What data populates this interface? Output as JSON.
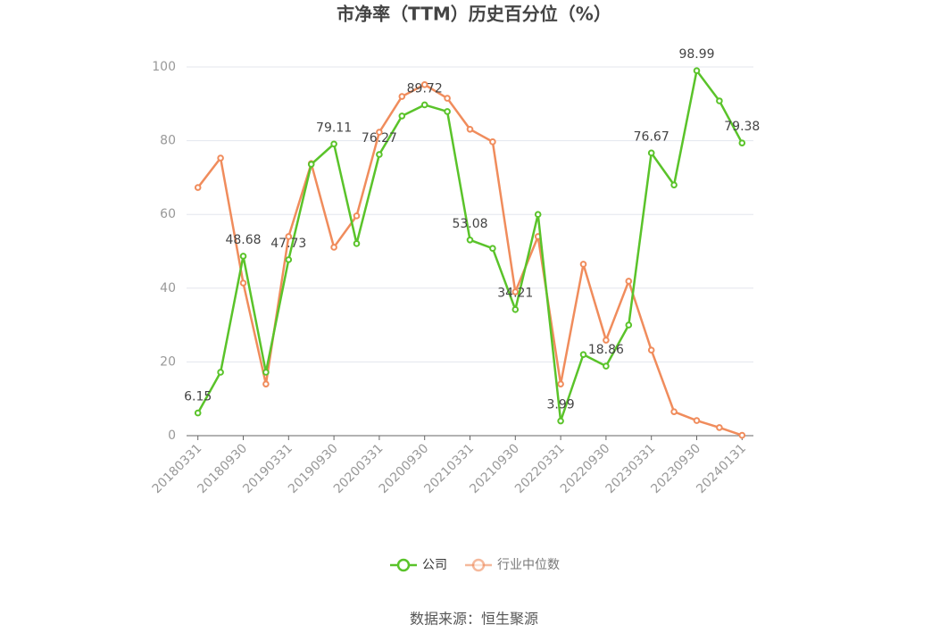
{
  "chart_data": {
    "type": "line",
    "title": "市净率（TTM）历史百分位（%）",
    "source": "数据来源：恒生聚源",
    "categories": [
      "20180331",
      null,
      "20180930",
      null,
      "20190331",
      null,
      "20190930",
      null,
      "20200331",
      null,
      "20200930",
      null,
      "20210331",
      null,
      "20210930",
      null,
      "20220331",
      null,
      "20220930",
      null,
      "20230331",
      null,
      "20230930",
      null,
      "20240131"
    ],
    "series": [
      {
        "name": "公司",
        "color": "#5ac32a",
        "values": [
          6.15,
          17.2,
          48.68,
          17.2,
          47.73,
          73.6,
          79.11,
          52.1,
          76.27,
          86.7,
          89.72,
          87.9,
          53.08,
          50.8,
          34.21,
          60.0,
          3.99,
          22.0,
          18.86,
          30.0,
          76.67,
          68.0,
          98.99,
          90.8,
          79.38
        ],
        "value_labels": [
          "6.15",
          null,
          "48.68",
          null,
          "47.73",
          null,
          "79.11",
          null,
          "76.27",
          null,
          "89.72",
          null,
          "53.08",
          null,
          "34.21",
          null,
          "3.99",
          null,
          "18.86",
          null,
          "76.67",
          null,
          "98.99",
          null,
          "79.38"
        ]
      },
      {
        "name": "行业中位数",
        "color": "#f08c5c",
        "values": [
          67.3,
          75.3,
          41.4,
          14.0,
          54.0,
          73.8,
          51.1,
          59.6,
          82.3,
          92.0,
          95.2,
          91.5,
          83.1,
          79.7,
          39.0,
          54.0,
          14.0,
          46.5,
          25.9,
          41.9,
          23.2,
          6.5,
          4.1,
          2.2,
          0.1
        ]
      }
    ],
    "ylim": [
      0,
      100
    ],
    "yticks": [
      0,
      20,
      40,
      60,
      80,
      100
    ],
    "grid": true,
    "legend": "bottom"
  }
}
